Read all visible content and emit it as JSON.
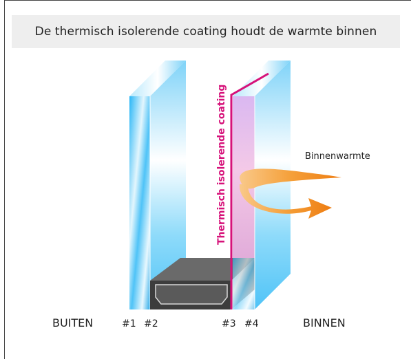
{
  "title": "De thermisch isolerende coating houdt de warmte binnen",
  "coating_label": "Thermisch isolerende coating",
  "heat_label": "Binnenwarmte",
  "side_outside": "BUITEN",
  "side_inside": "BINNEN",
  "surfaces": [
    "#1",
    "#2",
    "#3",
    "#4"
  ],
  "colors": {
    "glass": "#4fc3f7",
    "coating": "#d6127a",
    "arrow": "#f28c1c",
    "spacer": "#555555",
    "title_bg": "#eeeeee"
  }
}
